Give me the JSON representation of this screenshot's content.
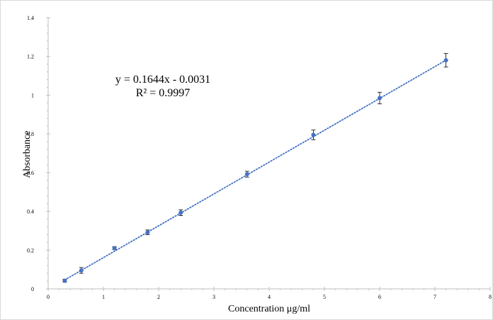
{
  "chart_data": {
    "type": "scatter",
    "xlabel": "Concentration μg/ml",
    "ylabel": "Absorbance",
    "xlim": [
      0,
      8
    ],
    "ylim": [
      0,
      1.4
    ],
    "xticks": [
      "0",
      "1",
      "2",
      "3",
      "4",
      "5",
      "6",
      "7",
      "8"
    ],
    "yticks": [
      "0",
      "0.2",
      "0.4",
      "0.6",
      "0.8",
      "1",
      "1.2",
      "1.4"
    ],
    "grid": false,
    "series": [
      {
        "x": [
          0.3,
          0.6,
          1.2,
          1.8,
          2.4,
          3.6,
          4.8,
          6.0,
          7.2
        ],
        "y": [
          0.042,
          0.095,
          0.21,
          0.292,
          0.393,
          0.592,
          0.795,
          0.985,
          1.18
        ],
        "error": [
          0.008,
          0.015,
          0.008,
          0.012,
          0.015,
          0.015,
          0.025,
          0.03,
          0.035
        ],
        "color": "#4472C4"
      }
    ],
    "trendline": {
      "type": "linear",
      "slope": 0.1644,
      "intercept": -0.0031,
      "style": "dotted",
      "color": "#4472C4"
    },
    "annotations": [
      "y = 0.1644x - 0.0031",
      "R² = 0.9997"
    ]
  }
}
